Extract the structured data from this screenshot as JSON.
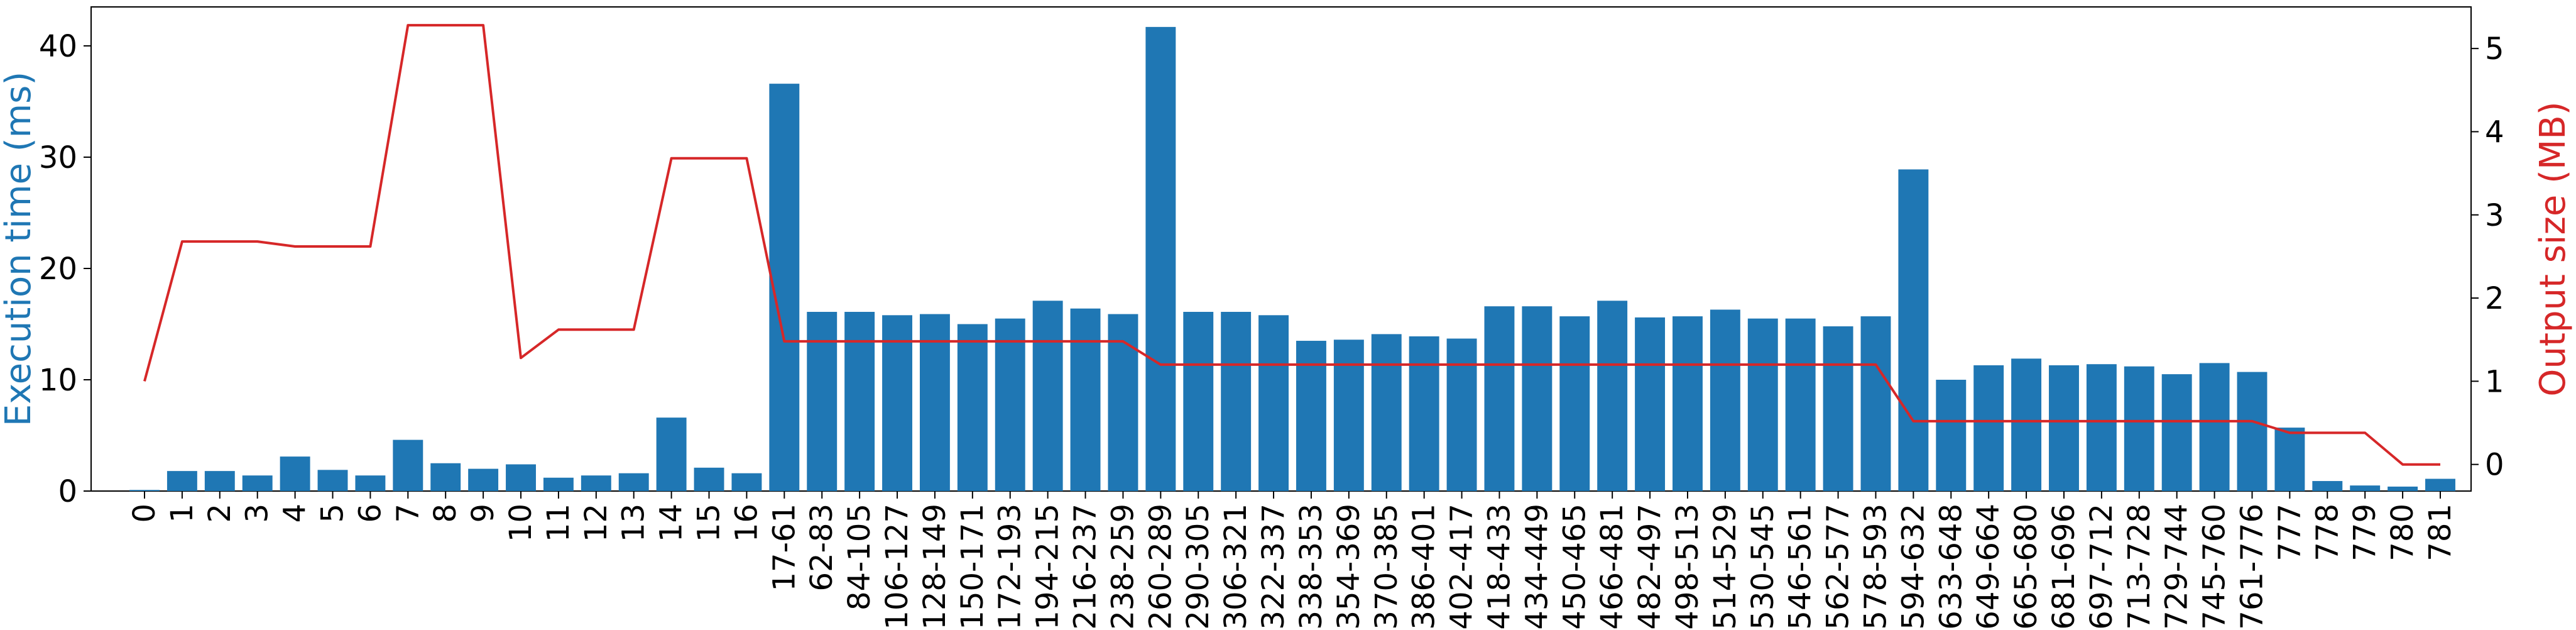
{
  "chart_data": {
    "type": "bar",
    "title": "",
    "xlabel": "",
    "ylabel": "Execution time (ms)",
    "y2label": "Output size (MB)",
    "ylim": [
      0,
      43.5
    ],
    "y2lim": [
      -0.32,
      5.5
    ],
    "yticks": [
      0,
      10,
      20,
      30,
      40
    ],
    "y2ticks": [
      0,
      1,
      2,
      3,
      4,
      5
    ],
    "grid": false,
    "legend": "none",
    "colors": {
      "bars": "#1f77b4",
      "line": "#d62728",
      "ylabel": "#1f77b4",
      "y2label": "#d62728"
    },
    "categories": [
      "0",
      "1",
      "2",
      "3",
      "4",
      "5",
      "6",
      "7",
      "8",
      "9",
      "10",
      "11",
      "12",
      "13",
      "14",
      "15",
      "16",
      "17-61",
      "62-83",
      "84-105",
      "106-127",
      "128-149",
      "150-171",
      "172-193",
      "194-215",
      "216-237",
      "238-259",
      "260-289",
      "290-305",
      "306-321",
      "322-337",
      "338-353",
      "354-369",
      "370-385",
      "386-401",
      "402-417",
      "418-433",
      "434-449",
      "450-465",
      "466-481",
      "482-497",
      "498-513",
      "514-529",
      "530-545",
      "546-561",
      "562-577",
      "578-593",
      "594-632",
      "633-648",
      "649-664",
      "665-680",
      "681-696",
      "697-712",
      "713-728",
      "729-744",
      "745-760",
      "761-776",
      "777",
      "778",
      "779",
      "780",
      "781"
    ],
    "series": [
      {
        "type": "bar",
        "axis": "left",
        "values": [
          0.1,
          1.8,
          1.8,
          1.4,
          3.1,
          1.9,
          1.4,
          4.6,
          2.5,
          2.0,
          2.4,
          1.2,
          1.4,
          1.6,
          6.6,
          2.1,
          1.6,
          36.6,
          16.1,
          16.1,
          15.8,
          15.9,
          15.0,
          15.5,
          17.1,
          16.4,
          15.9,
          41.7,
          16.1,
          16.1,
          15.8,
          13.5,
          13.6,
          14.1,
          13.9,
          13.7,
          16.6,
          16.6,
          15.7,
          17.1,
          15.6,
          15.7,
          16.3,
          15.5,
          15.5,
          14.8,
          15.7,
          28.9,
          10.0,
          11.3,
          11.9,
          11.3,
          11.4,
          11.2,
          10.5,
          11.5,
          10.7,
          5.7,
          0.9,
          0.5,
          0.4,
          1.1
        ]
      },
      {
        "type": "line",
        "axis": "right",
        "values": [
          1.0,
          2.68,
          2.68,
          2.68,
          2.62,
          2.62,
          2.62,
          5.28,
          5.28,
          5.28,
          1.28,
          1.62,
          1.62,
          1.62,
          3.68,
          3.68,
          3.68,
          1.48,
          1.48,
          1.48,
          1.48,
          1.48,
          1.48,
          1.48,
          1.48,
          1.48,
          1.48,
          1.2,
          1.2,
          1.2,
          1.2,
          1.2,
          1.2,
          1.2,
          1.2,
          1.2,
          1.2,
          1.2,
          1.2,
          1.2,
          1.2,
          1.2,
          1.2,
          1.2,
          1.2,
          1.2,
          1.2,
          0.52,
          0.52,
          0.52,
          0.52,
          0.52,
          0.52,
          0.52,
          0.52,
          0.52,
          0.52,
          0.38,
          0.38,
          0.38,
          0.0,
          0.0
        ]
      }
    ]
  }
}
